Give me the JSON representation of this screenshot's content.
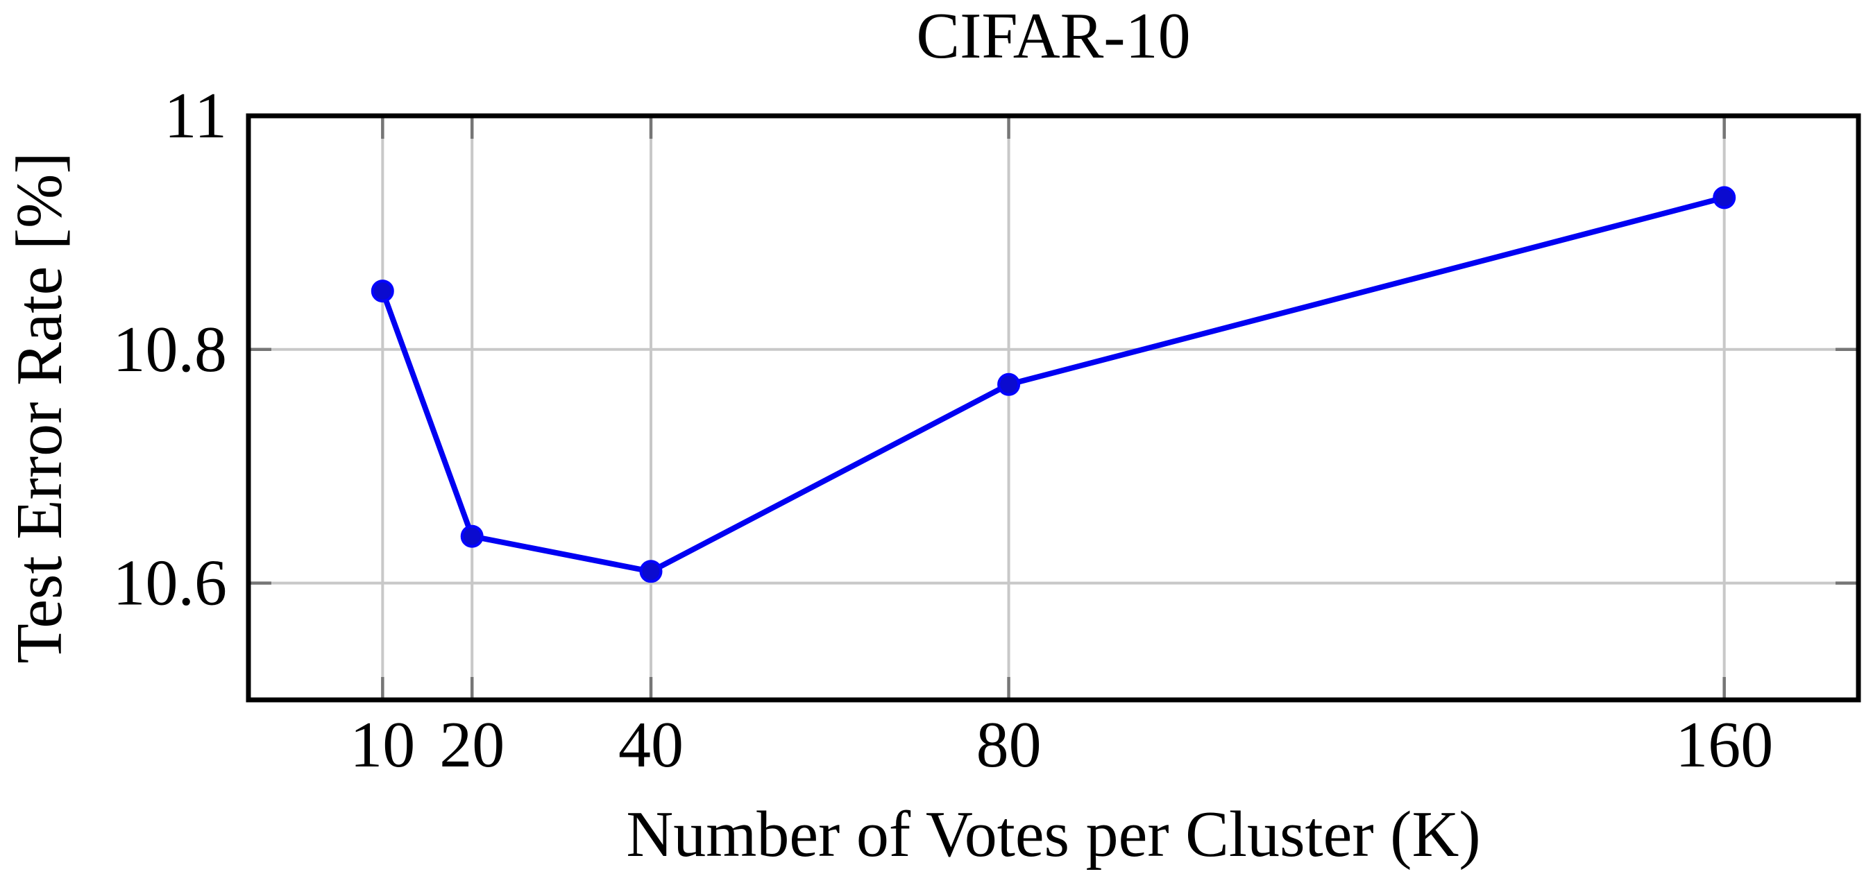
{
  "chart_data": {
    "type": "line",
    "title": "CIFAR-10",
    "xlabel": "Number of Votes per Cluster (K)",
    "ylabel": "Test Error Rate [%]",
    "x": [
      10,
      20,
      40,
      80,
      160
    ],
    "y": [
      10.85,
      10.64,
      10.61,
      10.77,
      10.93
    ],
    "series": [
      {
        "name": "test-error-rate",
        "x": [
          10,
          20,
          40,
          80,
          160
        ],
        "values": [
          10.85,
          10.64,
          10.61,
          10.77,
          10.93
        ]
      }
    ],
    "xticks": [
      10,
      20,
      40,
      80,
      160
    ],
    "xtick_labels": [
      "10",
      "20",
      "40",
      "80",
      "160"
    ],
    "yticks": [
      11,
      10.8,
      10.6
    ],
    "ytick_labels": [
      "11",
      "10.8",
      "10.6"
    ],
    "xlim": [
      -5,
      175
    ],
    "ylim": [
      10.5,
      11
    ],
    "grid": true,
    "legend_position": "none",
    "colors": {
      "line": "#0000f2",
      "marker_fill": "#0b0bcf",
      "marker_stroke": "#0404ff",
      "grid": "#c8c8c8",
      "tick": "#767676",
      "frame": "#000000",
      "text": "#000000",
      "background": "#ffffff"
    }
  }
}
